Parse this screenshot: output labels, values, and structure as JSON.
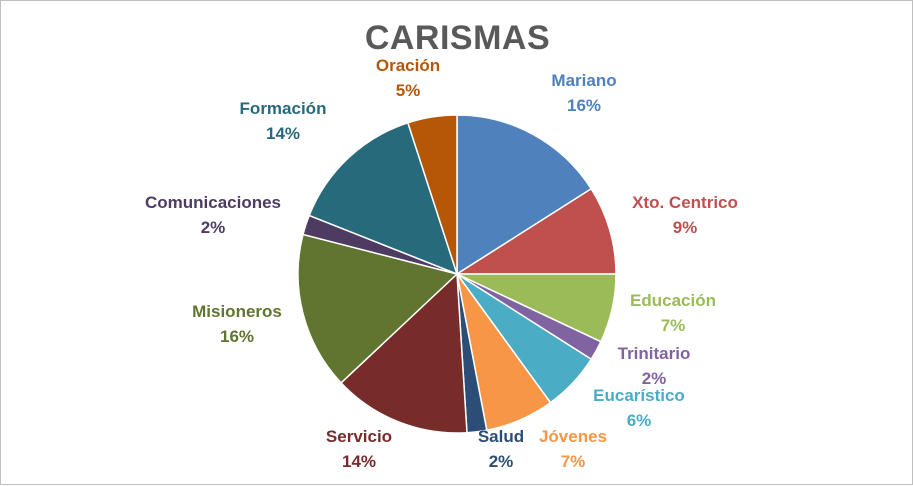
{
  "chart_data": {
    "type": "pie",
    "title": "CARISMAS",
    "slices": [
      {
        "name": "Mariano",
        "value": 16,
        "label": "16%",
        "color": "#4F81BD"
      },
      {
        "name": "Xto. Centrico",
        "value": 9,
        "label": "9%",
        "color": "#C0504D"
      },
      {
        "name": "Educación",
        "value": 7,
        "label": "7%",
        "color": "#9BBB59"
      },
      {
        "name": "Trinitario",
        "value": 2,
        "label": "2%",
        "color": "#8064A2"
      },
      {
        "name": "Eucarístico",
        "value": 6,
        "label": "6%",
        "color": "#4BACC6"
      },
      {
        "name": "Jóvenes",
        "value": 7,
        "label": "7%",
        "color": "#F79646"
      },
      {
        "name": "Salud",
        "value": 2,
        "label": "2%",
        "color": "#2C4D75"
      },
      {
        "name": "Servicio",
        "value": 14,
        "label": "14%",
        "color": "#772C2A"
      },
      {
        "name": "Misioneros",
        "value": 16,
        "label": "16%",
        "color": "#5F7530"
      },
      {
        "name": "Comunicaciones",
        "value": 2,
        "label": "2%",
        "color": "#4D3B62"
      },
      {
        "name": "Formación",
        "value": 14,
        "label": "14%",
        "color": "#276A7C"
      },
      {
        "name": "Oración",
        "value": 5,
        "label": "5%",
        "color": "#B65708"
      }
    ],
    "start_angle_deg": 0,
    "direction": "clockwise",
    "legend": "none",
    "data_labels": "outside"
  }
}
